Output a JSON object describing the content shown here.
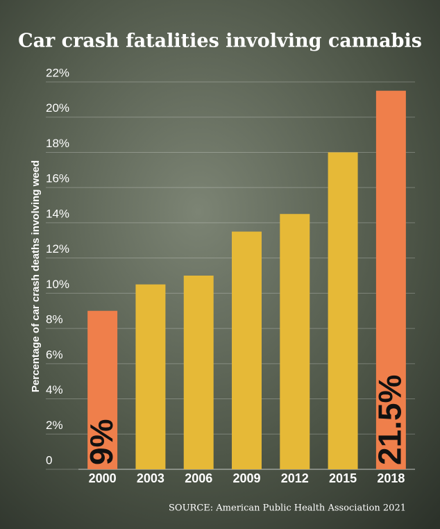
{
  "chart_data": {
    "type": "bar",
    "title": "Car crash fatalities involving cannabis",
    "y_label": "Percentage of car crash deaths involving weed",
    "source": "SOURCE: American Public Health Association 2021",
    "categories": [
      "2000",
      "2003",
      "2006",
      "2009",
      "2012",
      "2015",
      "2018"
    ],
    "values": [
      9,
      10.5,
      11,
      13.5,
      14.5,
      18,
      21.5
    ],
    "value_labels": [
      "9%",
      null,
      null,
      null,
      null,
      null,
      "21.5%"
    ],
    "colors": [
      "#ef7f4b",
      "#e6b937",
      "#e6b937",
      "#e6b937",
      "#e6b937",
      "#e6b937",
      "#ef7f4b"
    ],
    "ylim": [
      0,
      22
    ],
    "yticks": [
      0,
      {
        "value": 2,
        "label": "2%"
      },
      {
        "value": 4,
        "label": "4%"
      },
      {
        "value": 6,
        "label": "6%"
      },
      {
        "value": 8,
        "label": "8%"
      },
      {
        "value": 10,
        "label": "10%"
      },
      {
        "value": 12,
        "label": "12%"
      },
      {
        "value": 14,
        "label": "14%"
      },
      {
        "value": 16,
        "label": "16%"
      },
      {
        "value": 18,
        "label": "18%"
      },
      {
        "value": 20,
        "label": "20%"
      },
      {
        "value": 22,
        "label": "22%"
      }
    ],
    "grid": true
  }
}
